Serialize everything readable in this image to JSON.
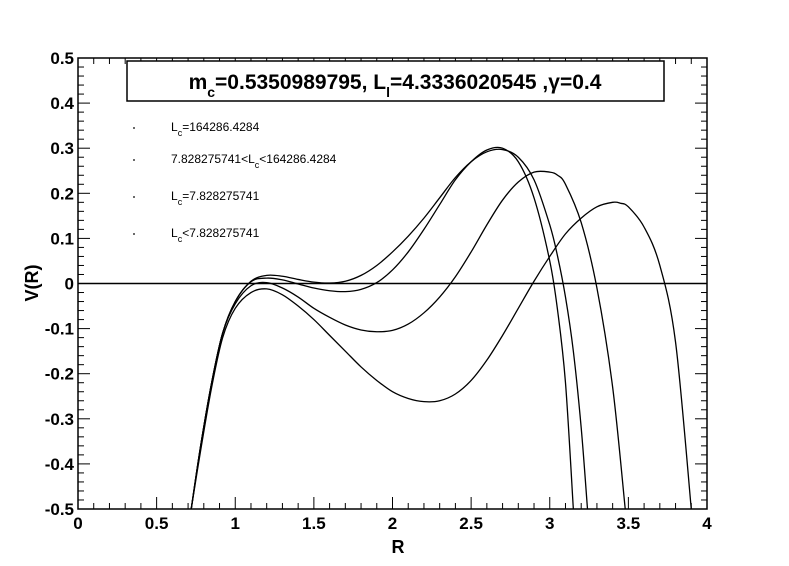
{
  "chart_data": {
    "type": "line",
    "title": {
      "segments": [
        {
          "text": "m",
          "sub": false
        },
        {
          "text": "c",
          "sub": true
        },
        {
          "text": "=0.5350989795, L",
          "sub": false
        },
        {
          "text": "l",
          "sub": true
        },
        {
          "text": "=4.3336020545 ,",
          "sub": false
        },
        {
          "text": "γ",
          "sub": false
        },
        {
          "text": "=0.4",
          "sub": false
        }
      ]
    },
    "xlabel": "R",
    "ylabel": "V(R)",
    "xlim": [
      0,
      4
    ],
    "ylim": [
      -0.5,
      0.5
    ],
    "x_ticks": [
      "0",
      "0.5",
      "1",
      "1.5",
      "2",
      "2.5",
      "3",
      "3.5",
      "4"
    ],
    "y_ticks": [
      "-0.5",
      "-0.4",
      "-0.3",
      "-0.2",
      "-0.1",
      "0",
      "0.1",
      "0.2",
      "0.3",
      "0.4",
      "0.5"
    ],
    "grid": false,
    "legend_position": "top-left",
    "legend": [
      {
        "segments": [
          {
            "text": "L",
            "sub": false
          },
          {
            "text": "c",
            "sub": true
          },
          {
            "text": "=164286.4284",
            "sub": false
          }
        ]
      },
      {
        "segments": [
          {
            "text": "7.828275741<L",
            "sub": false
          },
          {
            "text": "c",
            "sub": true
          },
          {
            "text": "<164286.4284",
            "sub": false
          }
        ]
      },
      {
        "segments": [
          {
            "text": "L",
            "sub": false
          },
          {
            "text": "c",
            "sub": true
          },
          {
            "text": "=7.828275741",
            "sub": false
          }
        ]
      },
      {
        "segments": [
          {
            "text": "L",
            "sub": false
          },
          {
            "text": "c",
            "sub": true
          },
          {
            "text": "<7.828275741",
            "sub": false
          }
        ]
      }
    ],
    "reference_line_y": 0,
    "series": [
      {
        "x": [
          0.72,
          0.78,
          0.85,
          0.92,
          1.0,
          1.1,
          1.2,
          1.3,
          1.4,
          1.5,
          1.6,
          1.7,
          1.8,
          1.9,
          2.0,
          2.1,
          2.2,
          2.3,
          2.4,
          2.5,
          2.6,
          2.7,
          2.8,
          2.9,
          3.0,
          3.05,
          3.1,
          3.15,
          3.2,
          3.24
        ],
        "y": [
          -0.5,
          -0.36,
          -0.22,
          -0.11,
          -0.04,
          0.005,
          0.018,
          0.016,
          0.009,
          0.003,
          0.001,
          0.005,
          0.018,
          0.04,
          0.07,
          0.105,
          0.145,
          0.19,
          0.235,
          0.27,
          0.292,
          0.297,
          0.28,
          0.23,
          0.13,
          0.06,
          -0.03,
          -0.15,
          -0.32,
          -0.5
        ]
      },
      {
        "x": [
          0.72,
          0.78,
          0.85,
          0.92,
          1.0,
          1.1,
          1.2,
          1.3,
          1.4,
          1.5,
          1.6,
          1.7,
          1.8,
          1.9,
          2.0,
          2.1,
          2.2,
          2.3,
          2.4,
          2.5,
          2.6,
          2.7,
          2.8,
          2.9,
          3.0,
          3.05,
          3.1,
          3.15
        ],
        "y": [
          -0.5,
          -0.36,
          -0.22,
          -0.11,
          -0.04,
          0.004,
          0.012,
          0.008,
          -0.001,
          -0.01,
          -0.016,
          -0.018,
          -0.013,
          0.002,
          0.03,
          0.07,
          0.12,
          0.175,
          0.23,
          0.27,
          0.296,
          0.3,
          0.27,
          0.19,
          0.05,
          -0.06,
          -0.22,
          -0.5
        ]
      },
      {
        "x": [
          0.72,
          0.78,
          0.85,
          0.92,
          1.0,
          1.1,
          1.2,
          1.3,
          1.4,
          1.5,
          1.6,
          1.7,
          1.8,
          1.9,
          2.0,
          2.1,
          2.2,
          2.3,
          2.4,
          2.5,
          2.6,
          2.7,
          2.8,
          2.9,
          3.0,
          3.05,
          3.1,
          3.2,
          3.3,
          3.4,
          3.48
        ],
        "y": [
          -0.5,
          -0.36,
          -0.22,
          -0.11,
          -0.045,
          -0.005,
          0.002,
          -0.01,
          -0.03,
          -0.055,
          -0.075,
          -0.092,
          -0.103,
          -0.107,
          -0.104,
          -0.09,
          -0.065,
          -0.03,
          0.015,
          0.07,
          0.13,
          0.185,
          0.225,
          0.247,
          0.247,
          0.24,
          0.22,
          0.135,
          -0.01,
          -0.23,
          -0.5
        ]
      },
      {
        "x": [
          0.72,
          0.78,
          0.85,
          0.92,
          1.0,
          1.1,
          1.2,
          1.3,
          1.4,
          1.5,
          1.6,
          1.7,
          1.8,
          1.9,
          2.0,
          2.1,
          2.2,
          2.3,
          2.4,
          2.5,
          2.6,
          2.7,
          2.8,
          2.9,
          3.0,
          3.1,
          3.2,
          3.3,
          3.4,
          3.45,
          3.5,
          3.6,
          3.7,
          3.8,
          3.9
        ],
        "y": [
          -0.5,
          -0.37,
          -0.23,
          -0.12,
          -0.055,
          -0.02,
          -0.012,
          -0.025,
          -0.05,
          -0.08,
          -0.115,
          -0.15,
          -0.185,
          -0.215,
          -0.24,
          -0.255,
          -0.262,
          -0.26,
          -0.245,
          -0.215,
          -0.17,
          -0.115,
          -0.055,
          0.005,
          0.06,
          0.11,
          0.145,
          0.17,
          0.18,
          0.178,
          0.17,
          0.125,
          0.04,
          -0.13,
          -0.5
        ]
      }
    ]
  }
}
